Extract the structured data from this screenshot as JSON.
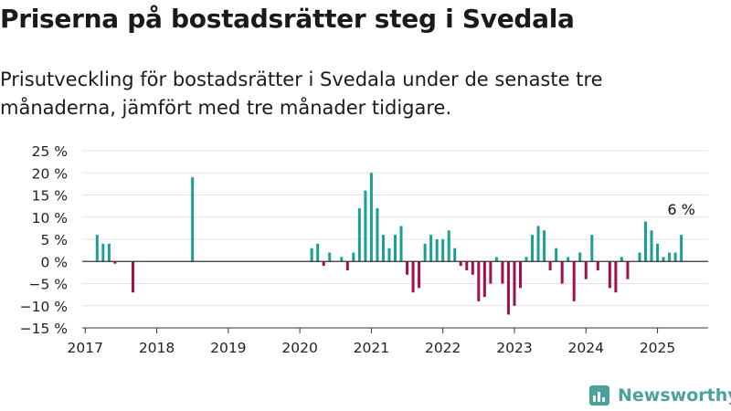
{
  "header": {
    "title": "Priserna på bostadsrätter steg i Svedala",
    "subtitle": "Prisutveckling för bostadsrätter i Svedala under de senaste tre månaderna, jämfört med tre månader tidigare."
  },
  "brand": {
    "name": "Newsworthy",
    "icon": "newsworthy-logo-icon"
  },
  "colors": {
    "positive": "#1a9e96",
    "negative": "#a50e4a",
    "grid": "#e3e3e3",
    "zero_line": "#333333",
    "brand": "#4aa29a"
  },
  "chart_data": {
    "type": "bar",
    "title": "Priserna på bostadsrätter steg i Svedala",
    "xlabel": "",
    "ylabel": "",
    "ylim": [
      -15,
      25
    ],
    "yticks": [
      -15,
      -10,
      -5,
      0,
      5,
      10,
      15,
      20,
      25
    ],
    "ytick_labels": [
      "−15 %",
      "−10 %",
      "−5 %",
      "0 %",
      "5 %",
      "10 %",
      "15 %",
      "20 %",
      "25 %"
    ],
    "xlim": [
      "2017-01",
      "2025-09"
    ],
    "xtick_labels": [
      "2017",
      "2018",
      "2019",
      "2020",
      "2021",
      "2022",
      "2023",
      "2024",
      "2025"
    ],
    "grid": true,
    "annotation": {
      "date": "2025-05",
      "text": "6 %"
    },
    "series": [
      {
        "values": [
          {
            "x": "2017-03",
            "y": 6
          },
          {
            "x": "2017-04",
            "y": 4
          },
          {
            "x": "2017-05",
            "y": 4
          },
          {
            "x": "2017-06",
            "y": -0.5
          },
          {
            "x": "2017-09",
            "y": -7
          },
          {
            "x": "2018-07",
            "y": 19
          },
          {
            "x": "2020-03",
            "y": 3
          },
          {
            "x": "2020-04",
            "y": 4
          },
          {
            "x": "2020-05",
            "y": -1
          },
          {
            "x": "2020-06",
            "y": 2
          },
          {
            "x": "2020-08",
            "y": 1
          },
          {
            "x": "2020-09",
            "y": -2
          },
          {
            "x": "2020-10",
            "y": 2
          },
          {
            "x": "2020-11",
            "y": 12
          },
          {
            "x": "2020-12",
            "y": 16
          },
          {
            "x": "2021-01",
            "y": 20
          },
          {
            "x": "2021-02",
            "y": 12
          },
          {
            "x": "2021-03",
            "y": 6
          },
          {
            "x": "2021-04",
            "y": 3
          },
          {
            "x": "2021-05",
            "y": 6
          },
          {
            "x": "2021-06",
            "y": 8
          },
          {
            "x": "2021-07",
            "y": -3
          },
          {
            "x": "2021-08",
            "y": -7
          },
          {
            "x": "2021-09",
            "y": -6
          },
          {
            "x": "2021-10",
            "y": 4
          },
          {
            "x": "2021-11",
            "y": 6
          },
          {
            "x": "2021-12",
            "y": 5
          },
          {
            "x": "2022-01",
            "y": 5
          },
          {
            "x": "2022-02",
            "y": 7
          },
          {
            "x": "2022-03",
            "y": 3
          },
          {
            "x": "2022-04",
            "y": -1
          },
          {
            "x": "2022-05",
            "y": -2
          },
          {
            "x": "2022-06",
            "y": -3
          },
          {
            "x": "2022-07",
            "y": -9
          },
          {
            "x": "2022-08",
            "y": -8
          },
          {
            "x": "2022-09",
            "y": -5
          },
          {
            "x": "2022-10",
            "y": 1
          },
          {
            "x": "2022-11",
            "y": -5
          },
          {
            "x": "2022-12",
            "y": -12
          },
          {
            "x": "2023-01",
            "y": -10
          },
          {
            "x": "2023-02",
            "y": -6
          },
          {
            "x": "2023-03",
            "y": 1
          },
          {
            "x": "2023-04",
            "y": 6
          },
          {
            "x": "2023-05",
            "y": 8
          },
          {
            "x": "2023-06",
            "y": 7
          },
          {
            "x": "2023-07",
            "y": -2
          },
          {
            "x": "2023-08",
            "y": 3
          },
          {
            "x": "2023-09",
            "y": -5
          },
          {
            "x": "2023-10",
            "y": 1
          },
          {
            "x": "2023-11",
            "y": -9
          },
          {
            "x": "2023-12",
            "y": 2
          },
          {
            "x": "2024-01",
            "y": -4
          },
          {
            "x": "2024-02",
            "y": 6
          },
          {
            "x": "2024-03",
            "y": -2
          },
          {
            "x": "2024-05",
            "y": -6
          },
          {
            "x": "2024-06",
            "y": -7
          },
          {
            "x": "2024-07",
            "y": 1
          },
          {
            "x": "2024-08",
            "y": -4
          },
          {
            "x": "2024-10",
            "y": 2
          },
          {
            "x": "2024-11",
            "y": 9
          },
          {
            "x": "2024-12",
            "y": 7
          },
          {
            "x": "2025-01",
            "y": 4
          },
          {
            "x": "2025-02",
            "y": 1
          },
          {
            "x": "2025-03",
            "y": 2
          },
          {
            "x": "2025-04",
            "y": 2
          },
          {
            "x": "2025-05",
            "y": 6
          }
        ]
      }
    ]
  }
}
